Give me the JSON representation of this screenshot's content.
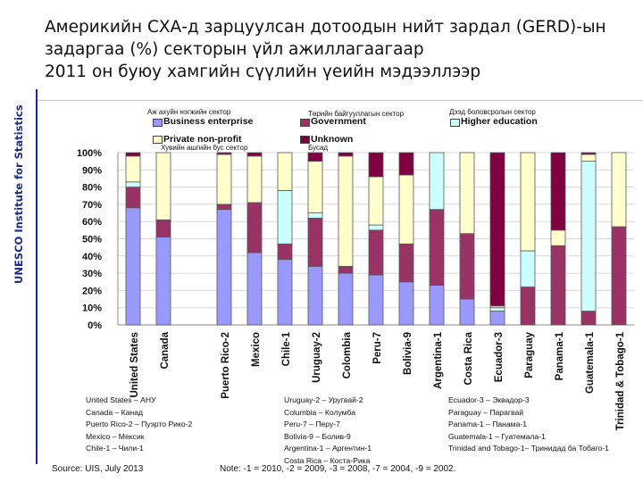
{
  "title": {
    "line1": "Америкийн СХА-д зарцуулсан дотоодын нийт зардал (GERD)-ын",
    "line2": "задаргаа (%) секторын үйл ажиллагаагаар",
    "line3": "2011 он буюу хамгийн сүүлийн үеийн мэдээллээр"
  },
  "side_label": "UNESCO Institute for Statistics",
  "legend": {
    "mn_business": "Аж ахуйн нэгжийн сектор",
    "mn_government": "Төрийн байгууллагын сектор",
    "mn_higher": "Дээд боловсролын сектор",
    "mn_private": "Хувийн ашгийн бус сектор",
    "mn_unknown": "Бусад",
    "items": [
      {
        "label": "Business enterprise",
        "color": "#9999ff"
      },
      {
        "label": "Government",
        "color": "#993366"
      },
      {
        "label": "Higher education",
        "color": "#ccffff"
      },
      {
        "label": "Private non-profit",
        "color": "#ffffcc"
      },
      {
        "label": "Unknown",
        "color": "#800040"
      }
    ]
  },
  "chart_data": {
    "type": "bar",
    "stacked": true,
    "ylim": [
      0,
      100
    ],
    "ytick_labels": [
      "0%",
      "10%",
      "20%",
      "30%",
      "40%",
      "50%",
      "60%",
      "70%",
      "80%",
      "90%",
      "100%"
    ],
    "categories": [
      "United States",
      "Canada",
      "",
      "Puerto Rico-2",
      "Mexico",
      "Chile-1",
      "Uruguay-2",
      "Colombia",
      "Peru-7",
      "Bolivia-9",
      "Argentina-1",
      "Costa Rica",
      "Ecuador-3",
      "Paraguay",
      "Panama-1",
      "Guatemala-1",
      "Trinidad & Tobago-1"
    ],
    "series": [
      {
        "name": "Business enterprise",
        "values": [
          68,
          51,
          0,
          67,
          42,
          38,
          34,
          30,
          29,
          25,
          23,
          15,
          8,
          0,
          0,
          0,
          0
        ]
      },
      {
        "name": "Government",
        "values": [
          12,
          10,
          0,
          3,
          29,
          9,
          28,
          4,
          26,
          22,
          44,
          38,
          0,
          22,
          46,
          8,
          57
        ]
      },
      {
        "name": "Higher education",
        "values": [
          3,
          0,
          0,
          0,
          0,
          31,
          3,
          0,
          3,
          0,
          33,
          0,
          2,
          21,
          0,
          87,
          0
        ]
      },
      {
        "name": "Private non-profit",
        "values": [
          15,
          39,
          0,
          29,
          27,
          22,
          30,
          64,
          28,
          40,
          0,
          47,
          1,
          57,
          9,
          4,
          43
        ]
      },
      {
        "name": "Unknown",
        "values": [
          2,
          0,
          0,
          1,
          2,
          0,
          5,
          2,
          14,
          13,
          0,
          0,
          89,
          0,
          45,
          1,
          0
        ]
      }
    ]
  },
  "footnotes": {
    "col1": "United States – АНУ\nCanada – Канад\nPuerto Rico-2 – Пуэрто Рико-2\nMexico – Мексик\nChile-1 – Чили-1",
    "col2": "Uruguay-2 – Уругвай-2\nColumbia – Колумба\nPeru-7 – Перу-7\nBolivia-9 – Болив-9\nArgentina-1 – Аргентин-1\nCosta Rica – Коста-Рика",
    "col3": "Ecuador-3 – Эквадор-3\nParaguay – Парагвай\nPanama-1 – Панама-1\nGuatemala-1 – Гуатемала-1\nTrinidad and Tobago-1– Тринидад ба Тобаго-1",
    "source": "Source: UIS, July 2013",
    "note": "Note: -1 = 2010, -2 = 2009, -3 = 2008, -7 = 2004, -9 = 2002."
  }
}
